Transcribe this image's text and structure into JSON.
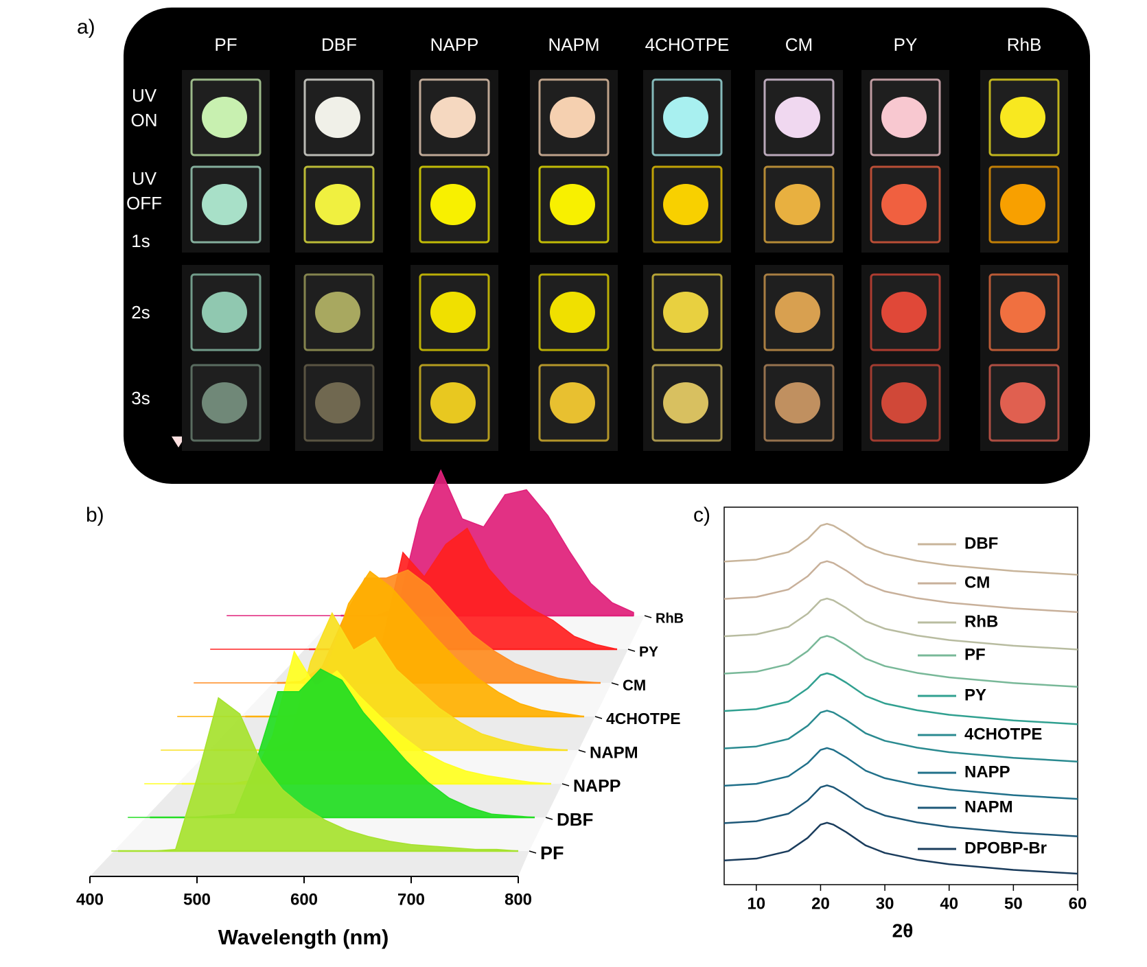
{
  "panel_a": {
    "label": "a)",
    "columns": [
      "PF",
      "DBF",
      "NAPP",
      "NAPM",
      "4CHOTPE",
      "CM",
      "PY",
      "RhB"
    ],
    "row_labels": [
      [
        "UV",
        "ON"
      ],
      [
        "UV",
        "OFF"
      ],
      [
        "1s"
      ],
      [
        "2s"
      ],
      [
        "3s"
      ]
    ],
    "sample_colors": [
      [
        "#c8f0b0",
        "#f0f0e8",
        "#f5d8c0",
        "#f5d0b0",
        "#a8f0f0",
        "#f0d8f0",
        "#f8c8d0",
        "#f8e820"
      ],
      [
        "#a8e0c8",
        "#f0f040",
        "#f8f000",
        "#f8f000",
        "#f8d000",
        "#e8b040",
        "#f06040",
        "#f8a000"
      ],
      [
        "#90c8b0",
        "#a8a860",
        "#f0e000",
        "#f0e000",
        "#e8d040",
        "#d8a050",
        "#e04838",
        "#f07040"
      ],
      [
        "#708878",
        "#706850",
        "#e8c820",
        "#e8c030",
        "#d8c060",
        "#c09060",
        "#d04838",
        "#e06050"
      ]
    ]
  },
  "chart_data": [
    {
      "type": "area",
      "panel": "b)",
      "x_label": "Wavelength (nm)",
      "x": [
        420,
        440,
        460,
        480,
        500,
        520,
        540,
        560,
        580,
        600,
        620,
        640,
        660,
        680,
        700,
        720,
        740,
        760,
        780,
        800
      ],
      "xlim": [
        400,
        800
      ],
      "xticks": [
        400,
        500,
        600,
        700,
        800
      ],
      "ylim": [
        0,
        1
      ],
      "series": [
        {
          "name": "PF",
          "color": "#a6e22e",
          "values": [
            0,
            0,
            0,
            0.01,
            0.45,
            0.95,
            0.85,
            0.55,
            0.38,
            0.27,
            0.19,
            0.13,
            0.09,
            0.06,
            0.04,
            0.03,
            0.02,
            0.01,
            0.01,
            0
          ]
        },
        {
          "name": "DBF",
          "color": "#22dd22",
          "values": [
            0,
            0,
            0,
            0,
            0.01,
            0.02,
            0.35,
            0.78,
            0.78,
            0.92,
            0.85,
            0.65,
            0.5,
            0.35,
            0.22,
            0.12,
            0.06,
            0.02,
            0.01,
            0
          ]
        },
        {
          "name": "NAPP",
          "color": "#ffff20",
          "values": [
            0,
            0,
            0,
            0,
            0,
            0.02,
            0.3,
            0.82,
            0.6,
            0.7,
            0.55,
            0.42,
            0.3,
            0.2,
            0.13,
            0.08,
            0.05,
            0.03,
            0.01,
            0
          ]
        },
        {
          "name": "NAPM",
          "color": "#f8e020",
          "values": [
            0,
            0,
            0,
            0,
            0,
            0,
            0.05,
            0.55,
            0.85,
            0.62,
            0.7,
            0.5,
            0.38,
            0.26,
            0.17,
            0.1,
            0.06,
            0.03,
            0.01,
            0
          ]
        },
        {
          "name": "4CHOTPE",
          "color": "#ffb000",
          "values": [
            0,
            0,
            0,
            0,
            0,
            0,
            0.02,
            0.3,
            0.7,
            0.9,
            0.8,
            0.65,
            0.5,
            0.36,
            0.24,
            0.15,
            0.08,
            0.04,
            0.02,
            0
          ]
        },
        {
          "name": "CM",
          "color": "#ff8c20",
          "values": [
            0,
            0,
            0,
            0,
            0,
            0.01,
            0.1,
            0.4,
            0.65,
            0.65,
            0.7,
            0.6,
            0.45,
            0.3,
            0.2,
            0.12,
            0.07,
            0.03,
            0.01,
            0
          ]
        },
        {
          "name": "PY",
          "color": "#ff2020",
          "values": [
            0,
            0,
            0,
            0,
            0,
            0,
            0,
            0,
            0.02,
            0.6,
            0.45,
            0.65,
            0.75,
            0.5,
            0.35,
            0.25,
            0.18,
            0.08,
            0.03,
            0
          ]
        },
        {
          "name": "RhB",
          "color": "#e0207a",
          "values": [
            0,
            0,
            0,
            0,
            0,
            0,
            0,
            0,
            0.05,
            0.6,
            0.9,
            0.6,
            0.55,
            0.75,
            0.78,
            0.62,
            0.4,
            0.2,
            0.08,
            0.02
          ]
        }
      ]
    },
    {
      "type": "line",
      "panel": "c)",
      "x_label": "2θ",
      "x": [
        5,
        10,
        15,
        18,
        20,
        21,
        22,
        24,
        27,
        30,
        35,
        40,
        50,
        60
      ],
      "xlim": [
        5,
        60
      ],
      "xticks": [
        10,
        20,
        30,
        40,
        50,
        60
      ],
      "ylim": [
        0,
        10
      ],
      "series": [
        {
          "name": "DBF",
          "color": "#c8b49a",
          "values": [
            8.56,
            8.61,
            8.81,
            9.16,
            9.51,
            9.56,
            9.51,
            9.31,
            8.96,
            8.76,
            8.58,
            8.46,
            8.31,
            8.21
          ]
        },
        {
          "name": "CM",
          "color": "#c8b09a",
          "values": [
            7.57,
            7.62,
            7.82,
            8.17,
            8.52,
            8.57,
            8.52,
            8.32,
            7.97,
            7.77,
            7.59,
            7.47,
            7.32,
            7.22
          ]
        },
        {
          "name": "RhB",
          "color": "#b8bca0",
          "values": [
            6.58,
            6.63,
            6.83,
            7.18,
            7.53,
            7.58,
            7.53,
            7.33,
            6.98,
            6.78,
            6.6,
            6.48,
            6.33,
            6.23
          ]
        },
        {
          "name": "PF",
          "color": "#78b898",
          "values": [
            5.59,
            5.64,
            5.84,
            6.19,
            6.54,
            6.59,
            6.54,
            6.34,
            5.99,
            5.79,
            5.61,
            5.49,
            5.34,
            5.24
          ]
        },
        {
          "name": "PY",
          "color": "#30a090",
          "values": [
            4.6,
            4.65,
            4.85,
            5.2,
            5.55,
            5.6,
            5.55,
            5.35,
            5.0,
            4.8,
            4.62,
            4.5,
            4.35,
            4.25
          ]
        },
        {
          "name": "4CHOTPE",
          "color": "#2a8a90",
          "values": [
            3.61,
            3.66,
            3.86,
            4.21,
            4.56,
            4.61,
            4.56,
            4.36,
            4.01,
            3.81,
            3.63,
            3.51,
            3.36,
            3.26
          ]
        },
        {
          "name": "NAPP",
          "color": "#20708a",
          "values": [
            2.62,
            2.67,
            2.87,
            3.22,
            3.57,
            3.62,
            3.57,
            3.37,
            3.02,
            2.82,
            2.64,
            2.52,
            2.37,
            2.27
          ]
        },
        {
          "name": "NAPM",
          "color": "#1e5878",
          "values": [
            1.63,
            1.68,
            1.88,
            2.23,
            2.58,
            2.63,
            2.58,
            2.38,
            2.03,
            1.83,
            1.65,
            1.53,
            1.38,
            1.28
          ]
        },
        {
          "name": "DPOBP-Br",
          "color": "#1a3c5c",
          "values": [
            0.64,
            0.69,
            0.89,
            1.24,
            1.59,
            1.64,
            1.59,
            1.39,
            1.04,
            0.84,
            0.66,
            0.54,
            0.39,
            0.29
          ]
        }
      ]
    }
  ]
}
